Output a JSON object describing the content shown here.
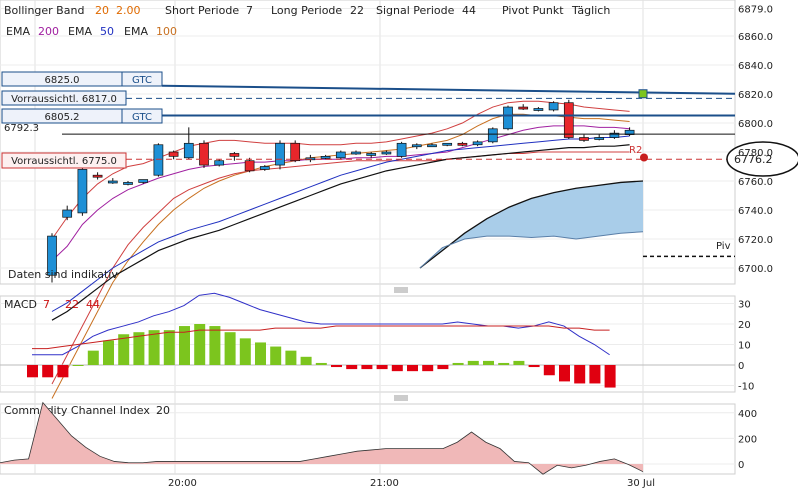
{
  "legend": {
    "bollinger_label": "Bollinger Band",
    "bollinger_p1": "20",
    "bollinger_p2": "2.00",
    "short_label": "Short Periode",
    "short_val": "7",
    "long_label": "Long Periode",
    "long_val": "22",
    "signal_label": "Signal Periode",
    "signal_val": "44",
    "pivot_label": "Pivot Punkt",
    "pivot_val": "Täglich",
    "ema_label": "EMA",
    "ema1": "200",
    "ema2": "50",
    "ema3": "100"
  },
  "orders": {
    "top_price": "6825.0",
    "top_tag": "GTC",
    "expected_top": "Vorraussichtl. 6817.0",
    "mid_price": "6805.2",
    "mid_tag": "GTC",
    "expected_bottom": "Vorraussichtl. 6775.0",
    "partial_label": "6792.3"
  },
  "last_price": "6776.2",
  "r2_label": "R2",
  "piv_label": "Piv",
  "indicative": "Daten sind indikativ",
  "macd": {
    "label": "MACD",
    "p1": "7",
    "p2": "22",
    "p3": "44"
  },
  "cci": {
    "label": "Commodity Channel Index",
    "p": "20"
  },
  "colors": {
    "up": "#1e90d6",
    "down": "#e8262b",
    "hist_up": "#7cc51e",
    "hist_down": "#e00010",
    "ema200": "#a020a0",
    "ema50": "#2030c0",
    "ema100": "#c87020",
    "order_line": "#1b4f8a"
  },
  "chart_data": [
    {
      "type": "candlestick",
      "title": "",
      "y_axis_ticks": [
        6700,
        6720,
        6740,
        6760,
        6780,
        6800,
        6820,
        6840,
        6860,
        6879
      ],
      "x_axis_ticks": [
        "20:00",
        "21:00",
        "30 Jul"
      ],
      "candles": [
        {
          "o": 6695,
          "h": 6724,
          "l": 6690,
          "c": 6722
        },
        {
          "o": 6735,
          "h": 6743,
          "l": 6733,
          "c": 6740
        },
        {
          "o": 6738,
          "h": 6772,
          "l": 6736,
          "c": 6768
        },
        {
          "o": 6764,
          "h": 6766,
          "l": 6761,
          "c": 6763
        },
        {
          "o": 6760,
          "h": 6762,
          "l": 6758,
          "c": 6760
        },
        {
          "o": 6758,
          "h": 6760,
          "l": 6757,
          "c": 6759
        },
        {
          "o": 6759,
          "h": 6761,
          "l": 6758,
          "c": 6761
        },
        {
          "o": 6764,
          "h": 6786,
          "l": 6763,
          "c": 6785
        },
        {
          "o": 6780,
          "h": 6781,
          "l": 6775,
          "c": 6777
        },
        {
          "o": 6776,
          "h": 6797,
          "l": 6775,
          "c": 6786
        },
        {
          "o": 6786,
          "h": 6788,
          "l": 6769,
          "c": 6771
        },
        {
          "o": 6771,
          "h": 6775,
          "l": 6770,
          "c": 6774
        },
        {
          "o": 6779,
          "h": 6780,
          "l": 6774,
          "c": 6777
        },
        {
          "o": 6774,
          "h": 6776,
          "l": 6766,
          "c": 6767
        },
        {
          "o": 6768,
          "h": 6771,
          "l": 6767,
          "c": 6770
        },
        {
          "o": 6771,
          "h": 6788,
          "l": 6768,
          "c": 6786
        },
        {
          "o": 6786,
          "h": 6788,
          "l": 6773,
          "c": 6774
        },
        {
          "o": 6775,
          "h": 6778,
          "l": 6773,
          "c": 6776
        },
        {
          "o": 6776,
          "h": 6778,
          "l": 6775,
          "c": 6777
        },
        {
          "o": 6776,
          "h": 6781,
          "l": 6775,
          "c": 6780
        },
        {
          "o": 6779,
          "h": 6781,
          "l": 6778,
          "c": 6780
        },
        {
          "o": 6778,
          "h": 6780,
          "l": 6776,
          "c": 6779
        },
        {
          "o": 6779,
          "h": 6781,
          "l": 6778,
          "c": 6780
        },
        {
          "o": 6777,
          "h": 6787,
          "l": 6776,
          "c": 6786
        },
        {
          "o": 6784,
          "h": 6786,
          "l": 6782,
          "c": 6785
        },
        {
          "o": 6785,
          "h": 6786,
          "l": 6784,
          "c": 6785
        },
        {
          "o": 6785,
          "h": 6786,
          "l": 6784,
          "c": 6786
        },
        {
          "o": 6786,
          "h": 6787,
          "l": 6784,
          "c": 6785
        },
        {
          "o": 6785,
          "h": 6788,
          "l": 6784,
          "c": 6787
        },
        {
          "o": 6787,
          "h": 6797,
          "l": 6786,
          "c": 6796
        },
        {
          "o": 6796,
          "h": 6812,
          "l": 6795,
          "c": 6811
        },
        {
          "o": 6811,
          "h": 6813,
          "l": 6809,
          "c": 6810
        },
        {
          "o": 6810,
          "h": 6811,
          "l": 6808,
          "c": 6810
        },
        {
          "o": 6809,
          "h": 6815,
          "l": 6808,
          "c": 6814
        },
        {
          "o": 6814,
          "h": 6816,
          "l": 6789,
          "c": 6790
        },
        {
          "o": 6790,
          "h": 6792,
          "l": 6787,
          "c": 6788
        },
        {
          "o": 6789,
          "h": 6792,
          "l": 6788,
          "c": 6790
        },
        {
          "o": 6790,
          "h": 6795,
          "l": 6789,
          "c": 6793
        },
        {
          "o": 6792,
          "h": 6797,
          "l": 6791,
          "c": 6795
        }
      ],
      "ema200": [
        6705,
        6715,
        6730,
        6740,
        6748,
        6754,
        6758,
        6762,
        6765,
        6768,
        6770,
        6771,
        6772,
        6773,
        6773,
        6774,
        6774,
        6775,
        6775,
        6775,
        6776,
        6776,
        6777,
        6777,
        6778,
        6779,
        6780,
        6783,
        6786,
        6789,
        6792,
        6795,
        6797,
        6798,
        6798,
        6798,
        6797,
        6797,
        6796
      ],
      "ema50": [
        6670,
        6676,
        6684,
        6692,
        6700,
        6706,
        6712,
        6718,
        6722,
        6726,
        6729,
        6732,
        6736,
        6740,
        6744,
        6748,
        6752,
        6756,
        6760,
        6764,
        6767,
        6770,
        6773,
        6775,
        6777,
        6779,
        6781,
        6782,
        6783,
        6784,
        6785,
        6786,
        6787,
        6788,
        6789,
        6789,
        6790,
        6790,
        6791
      ],
      "ema100": [
        6610,
        6630,
        6650,
        6670,
        6690,
        6705,
        6718,
        6730,
        6740,
        6748,
        6755,
        6760,
        6764,
        6767,
        6770,
        6772,
        6774,
        6776,
        6777,
        6778,
        6779,
        6780,
        6781,
        6782,
        6784,
        6786,
        6788,
        6792,
        6798,
        6803,
        6806,
        6806,
        6805,
        6805,
        6804,
        6803,
        6803,
        6802,
        6801
      ],
      "bb_upper": [
        6720,
        6735,
        6748,
        6758,
        6765,
        6770,
        6772,
        6776,
        6780,
        6784,
        6786,
        6788,
        6788,
        6787,
        6786,
        6786,
        6786,
        6785,
        6785,
        6785,
        6786,
        6786,
        6787,
        6789,
        6791,
        6793,
        6796,
        6800,
        6806,
        6811,
        6814,
        6815,
        6815,
        6814,
        6813,
        6811,
        6810,
        6809,
        6808
      ],
      "bb_lower": [
        6620,
        6640,
        6660,
        6680,
        6700,
        6716,
        6728,
        6738,
        6748,
        6754,
        6758,
        6762,
        6765,
        6767,
        6768,
        6769,
        6770,
        6771,
        6772,
        6773,
        6774,
        6774,
        6774,
        6774,
        6774,
        6774,
        6775,
        6776,
        6777,
        6778,
        6779,
        6779,
        6780,
        6780,
        6780,
        6780,
        6780,
        6780,
        6780
      ],
      "cloud_upper": [
        6700,
        6712,
        6724,
        6734,
        6742,
        6748,
        6752,
        6755,
        6757,
        6759,
        6760
      ],
      "cloud_lower": [
        6700,
        6714,
        6720,
        6722,
        6722,
        6721,
        6722,
        6720,
        6722,
        6724,
        6725
      ],
      "order_levels": {
        "top": 6825.0,
        "expected_top": 6817.0,
        "mid": 6805.2,
        "expected_bottom": 6775.0,
        "last": 6776.2,
        "r2": 6776.2,
        "piv": 6708
      }
    },
    {
      "type": "bar",
      "title": "MACD",
      "y_axis_ticks": [
        -10,
        0,
        10,
        20,
        30
      ],
      "histogram": [
        -6,
        -6,
        -6,
        0,
        7,
        12,
        15,
        16,
        17,
        17,
        19,
        20,
        19,
        16,
        13,
        11,
        9,
        7,
        4,
        1,
        -1,
        -2,
        -2,
        -2,
        -3,
        -3,
        -3,
        -2,
        1,
        2,
        2,
        1,
        2,
        -1,
        -5,
        -8,
        -9,
        -9,
        -11
      ],
      "macd_line": [
        5,
        5,
        5,
        9,
        14,
        17,
        19,
        21,
        24,
        26,
        29,
        34,
        35,
        33,
        30,
        27,
        25,
        23,
        21,
        20,
        20,
        20,
        20,
        20,
        20,
        20,
        20,
        20,
        21,
        20,
        19,
        19,
        18,
        19,
        21,
        19,
        14,
        10,
        5
      ],
      "signal_line": [
        8,
        8,
        9,
        10,
        11,
        12,
        13,
        14,
        15,
        16,
        16,
        17,
        17,
        17,
        17,
        17,
        18,
        18,
        18,
        18,
        19,
        19,
        19,
        19,
        19,
        19,
        19,
        19,
        19,
        19,
        19,
        19,
        19,
        19,
        19,
        18,
        18,
        17,
        17
      ]
    },
    {
      "type": "area",
      "title": "Commodity Channel Index",
      "y_axis_ticks": [
        0,
        200,
        400
      ],
      "values": [
        10,
        30,
        40,
        480,
        350,
        220,
        130,
        60,
        20,
        10,
        10,
        20,
        20,
        20,
        20,
        20,
        20,
        20,
        20,
        20,
        20,
        20,
        40,
        60,
        80,
        100,
        110,
        120,
        120,
        120,
        120,
        120,
        170,
        250,
        170,
        120,
        20,
        10,
        -80,
        -10,
        -30,
        -10,
        20,
        40,
        -5,
        -60
      ]
    }
  ]
}
